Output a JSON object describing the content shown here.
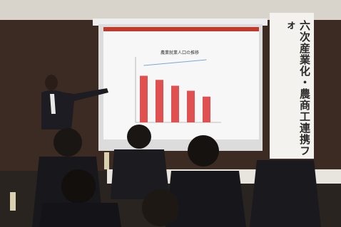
{
  "banner": {
    "title": "六次産業化・農商工連携フォ"
  },
  "slide": {
    "title": "農業就業人口の推移",
    "bars": [
      262,
      239,
      206,
      178,
      145
    ],
    "bar_color": "#e05050",
    "line_color": "#7aa6d6"
  }
}
